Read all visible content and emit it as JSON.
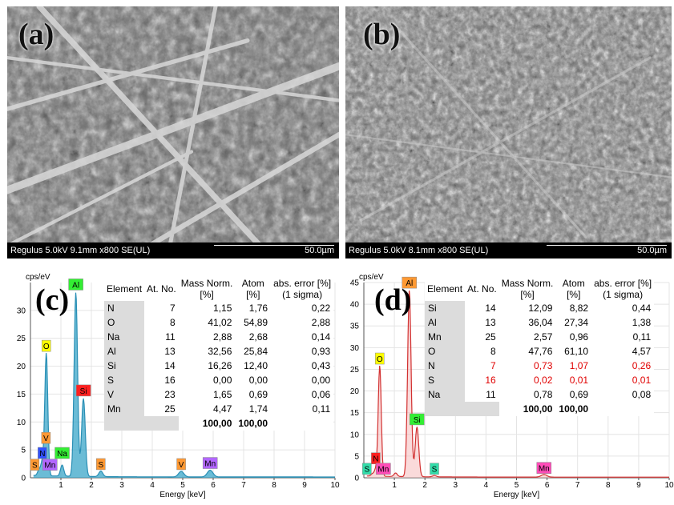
{
  "panels": {
    "a": {
      "letter": "(a)",
      "info": "Regulus 5.0kV 9.1mm x800 SE(UL)",
      "scale": "50.0µm"
    },
    "b": {
      "letter": "(b)",
      "info": "Regulus 5.0kV 8.1mm x800 SE(UL)",
      "scale": "50.0µm"
    },
    "c": {
      "letter": "(c)"
    },
    "d": {
      "letter": "(d)"
    }
  },
  "colors": {
    "spectrum_c": "#3aa6c8",
    "spectrum_d": "#d23030",
    "label_yellow": "#ffff00",
    "label_red": "#ff2020",
    "label_green": "#33ee33",
    "label_orange": "#ff9933",
    "label_purple": "#b266ff",
    "label_blue": "#3050ff",
    "label_pink": "#ff4db8",
    "label_teal": "#33ddaa"
  },
  "table_headers": {
    "element": "Element",
    "at_no": "At. No.",
    "mass_line1": "Mass Norm.",
    "mass_line2": "[%]",
    "atom_line1": "Atom",
    "atom_line2": "[%]",
    "err_line1": "abs. error [%]",
    "err_line2": "(1 sigma)"
  },
  "table_c": {
    "rows": [
      {
        "el": "N",
        "at": "7",
        "mass": "1,15",
        "atom": "1,76",
        "err": "0,22"
      },
      {
        "el": "O",
        "at": "8",
        "mass": "41,02",
        "atom": "54,89",
        "err": "2,88"
      },
      {
        "el": "Na",
        "at": "11",
        "mass": "2,88",
        "atom": "2,68",
        "err": "0,14"
      },
      {
        "el": "Al",
        "at": "13",
        "mass": "32,56",
        "atom": "25,84",
        "err": "0,93"
      },
      {
        "el": "Si",
        "at": "14",
        "mass": "16,26",
        "atom": "12,40",
        "err": "0,43"
      },
      {
        "el": "S",
        "at": "16",
        "mass": "0,00",
        "atom": "0,00",
        "err": "0,00"
      },
      {
        "el": "V",
        "at": "23",
        "mass": "1,65",
        "atom": "0,69",
        "err": "0,06"
      },
      {
        "el": "Mn",
        "at": "25",
        "mass": "4,47",
        "atom": "1,74",
        "err": "0,11"
      }
    ],
    "total_mass": "100,00",
    "total_atom": "100,00"
  },
  "table_d": {
    "rows": [
      {
        "el": "Si",
        "at": "14",
        "mass": "12,09",
        "atom": "8,82",
        "err": "0,44",
        "red": false
      },
      {
        "el": "Al",
        "at": "13",
        "mass": "36,04",
        "atom": "27,34",
        "err": "1,38",
        "red": false
      },
      {
        "el": "Mn",
        "at": "25",
        "mass": "2,57",
        "atom": "0,96",
        "err": "0,11",
        "red": false
      },
      {
        "el": "O",
        "at": "8",
        "mass": "47,76",
        "atom": "61,10",
        "err": "4,57",
        "red": false
      },
      {
        "el": "N",
        "at": "7",
        "mass": "0,73",
        "atom": "1,07",
        "err": "0,26",
        "red": true
      },
      {
        "el": "S",
        "at": "16",
        "mass": "0,02",
        "atom": "0,01",
        "err": "0,01",
        "red": true
      },
      {
        "el": "Na",
        "at": "11",
        "mass": "0,78",
        "atom": "0,69",
        "err": "0,08",
        "red": false
      }
    ],
    "total_mass": "100,00",
    "total_atom": "100,00"
  },
  "chart_data": [
    {
      "type": "line",
      "panel": "c",
      "ylabel": "cps/eV",
      "xlabel": "Energy [keV]",
      "xlim": [
        0,
        10
      ],
      "ylim": [
        0,
        35
      ],
      "xticks": [
        1,
        2,
        3,
        4,
        5,
        6,
        7,
        8,
        9,
        10
      ],
      "yticks": [
        0,
        5,
        10,
        15,
        20,
        25,
        30
      ],
      "peaks": [
        {
          "x": 0.28,
          "y": 1.0
        },
        {
          "x": 0.39,
          "y": 2.5
        },
        {
          "x": 0.52,
          "y": 22.0
        },
        {
          "x": 1.04,
          "y": 2.0
        },
        {
          "x": 1.49,
          "y": 33.0
        },
        {
          "x": 1.74,
          "y": 14.0
        },
        {
          "x": 2.31,
          "y": 1.0
        },
        {
          "x": 4.95,
          "y": 1.0
        },
        {
          "x": 5.9,
          "y": 1.2
        }
      ],
      "peak_labels": [
        {
          "text": "Al",
          "x": 1.49,
          "y": 33.5,
          "color": "#33ee33"
        },
        {
          "text": "O",
          "x": 0.52,
          "y": 22.5,
          "color": "#ffff00"
        },
        {
          "text": "Si",
          "x": 1.74,
          "y": 14.5,
          "color": "#ff2020"
        },
        {
          "text": "V",
          "x": 0.51,
          "y": 6.0,
          "color": "#ff9933"
        },
        {
          "text": "N",
          "x": 0.39,
          "y": 3.3,
          "color": "#3050ff"
        },
        {
          "text": "Na",
          "x": 1.04,
          "y": 3.3,
          "color": "#33ee33"
        },
        {
          "text": "S",
          "x": 0.14,
          "y": 1.2,
          "color": "#ff9933"
        },
        {
          "text": "Mn",
          "x": 0.64,
          "y": 1.2,
          "color": "#b266ff"
        },
        {
          "text": "S",
          "x": 2.31,
          "y": 1.3,
          "color": "#ff9933"
        },
        {
          "text": "V",
          "x": 4.95,
          "y": 1.3,
          "color": "#ff9933"
        },
        {
          "text": "Mn",
          "x": 5.9,
          "y": 1.5,
          "color": "#b266ff"
        }
      ]
    },
    {
      "type": "line",
      "panel": "d",
      "ylabel": "cps/eV",
      "xlabel": "Energy [keV]",
      "xlim": [
        0,
        10
      ],
      "ylim": [
        0,
        45
      ],
      "xticks": [
        1,
        2,
        3,
        4,
        5,
        6,
        7,
        8,
        9,
        10
      ],
      "yticks": [
        0,
        5,
        10,
        15,
        20,
        25,
        30,
        35,
        40,
        45
      ],
      "peaks": [
        {
          "x": 0.28,
          "y": 0.5
        },
        {
          "x": 0.39,
          "y": 1.5
        },
        {
          "x": 0.52,
          "y": 25.5
        },
        {
          "x": 1.04,
          "y": 0.8
        },
        {
          "x": 1.49,
          "y": 43.0
        },
        {
          "x": 1.74,
          "y": 11.5
        },
        {
          "x": 2.31,
          "y": 0.3
        },
        {
          "x": 5.9,
          "y": 0.6
        }
      ],
      "peak_labels": [
        {
          "text": "Al",
          "x": 1.49,
          "y": 43.5,
          "color": "#ff9933"
        },
        {
          "text": "O",
          "x": 0.52,
          "y": 26.0,
          "color": "#ffff00"
        },
        {
          "text": "Si",
          "x": 1.74,
          "y": 12.0,
          "color": "#33ee33"
        },
        {
          "text": "N",
          "x": 0.39,
          "y": 3.0,
          "color": "#ff2020"
        },
        {
          "text": "S",
          "x": 0.1,
          "y": 0.6,
          "color": "#33ddaa"
        },
        {
          "text": "Mn",
          "x": 0.64,
          "y": 0.6,
          "color": "#ff4db8"
        },
        {
          "text": "S",
          "x": 2.31,
          "y": 0.6,
          "color": "#33ddaa"
        },
        {
          "text": "Mn",
          "x": 5.9,
          "y": 0.8,
          "color": "#ff4db8"
        }
      ]
    }
  ]
}
